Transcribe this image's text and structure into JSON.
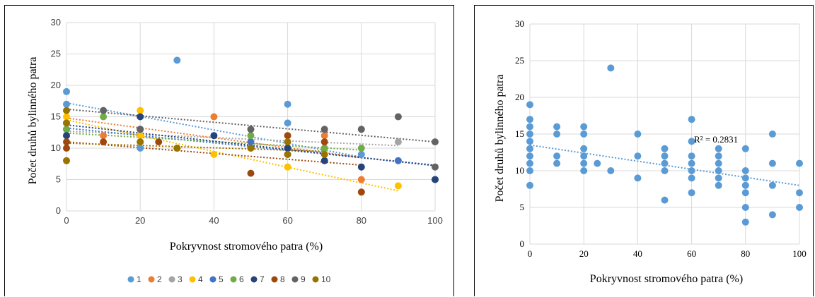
{
  "chart_data": [
    {
      "type": "scatter",
      "xlabel": "Pokryvnost stromového patra (%)",
      "ylabel": "Počet druhů bylinného patra",
      "xlim": [
        0,
        100
      ],
      "ylim": [
        0,
        30
      ],
      "xticks": [
        "0",
        "20",
        "40",
        "60",
        "80",
        "100"
      ],
      "yticks": [
        "0",
        "5",
        "10",
        "15",
        "20",
        "25",
        "30"
      ],
      "grid": true,
      "legend_position": "bottom",
      "series": [
        {
          "name": "1",
          "color": "#5B9BD5",
          "points": [
            [
              0,
              19
            ],
            [
              0,
              17
            ],
            [
              30,
              24
            ],
            [
              60,
              17
            ],
            [
              60,
              14
            ],
            [
              80,
              9
            ],
            [
              20,
              10
            ]
          ],
          "trend": [
            [
              0,
              17.2
            ],
            [
              80,
              8.6
            ]
          ]
        },
        {
          "name": "2",
          "color": "#ED7D31",
          "points": [
            [
              10,
              12
            ],
            [
              40,
              15
            ],
            [
              70,
              12
            ],
            [
              80,
              5
            ],
            [
              50,
              10
            ],
            [
              0,
              14
            ]
          ],
          "trend": [
            [
              0,
              14.8
            ],
            [
              80,
              8.5
            ]
          ]
        },
        {
          "name": "3",
          "color": "#A5A5A5",
          "points": [
            [
              0,
              12
            ],
            [
              20,
              13
            ],
            [
              50,
              11
            ],
            [
              90,
              11
            ],
            [
              70,
              10
            ]
          ],
          "trend": [
            [
              0,
              12.7
            ],
            [
              90,
              10.4
            ]
          ]
        },
        {
          "name": "4",
          "color": "#FFC000",
          "points": [
            [
              0,
              15
            ],
            [
              20,
              16
            ],
            [
              20,
              12
            ],
            [
              30,
              10
            ],
            [
              40,
              9
            ],
            [
              60,
              7
            ],
            [
              90,
              4
            ]
          ],
          "trend": [
            [
              0,
              14.5
            ],
            [
              90,
              3.2
            ]
          ]
        },
        {
          "name": "5",
          "color": "#4472C4",
          "points": [
            [
              0,
              13
            ],
            [
              20,
              13
            ],
            [
              50,
              11
            ],
            [
              60,
              10
            ],
            [
              90,
              8
            ],
            [
              100,
              5
            ]
          ],
          "trend": [
            [
              0,
              13.2
            ],
            [
              100,
              7.3
            ]
          ]
        },
        {
          "name": "6",
          "color": "#70AD47",
          "points": [
            [
              0,
              13
            ],
            [
              10,
              15
            ],
            [
              20,
              11
            ],
            [
              30,
              10
            ],
            [
              50,
              12
            ],
            [
              60,
              9
            ],
            [
              70,
              10
            ],
            [
              80,
              10
            ]
          ],
          "trend": [
            [
              0,
              12.4
            ],
            [
              80,
              9.7
            ]
          ]
        },
        {
          "name": "7",
          "color": "#264478",
          "points": [
            [
              0,
              12
            ],
            [
              20,
              15
            ],
            [
              40,
              12
            ],
            [
              60,
              10
            ],
            [
              70,
              8
            ],
            [
              80,
              7
            ],
            [
              100,
              5
            ]
          ],
          "trend": [
            [
              0,
              13.7
            ],
            [
              100,
              7.2
            ]
          ]
        },
        {
          "name": "8",
          "color": "#9E480E",
          "points": [
            [
              0,
              11
            ],
            [
              0,
              10
            ],
            [
              10,
              11
            ],
            [
              25,
              11
            ],
            [
              50,
              6
            ],
            [
              60,
              12
            ],
            [
              70,
              11
            ],
            [
              80,
              3
            ]
          ],
          "trend": [
            [
              0,
              11
            ],
            [
              80,
              7.3
            ]
          ]
        },
        {
          "name": "9",
          "color": "#636363",
          "points": [
            [
              10,
              16
            ],
            [
              20,
              13
            ],
            [
              50,
              13
            ],
            [
              70,
              13
            ],
            [
              80,
              13
            ],
            [
              90,
              15
            ],
            [
              100,
              11
            ],
            [
              100,
              7
            ]
          ],
          "trend": [
            [
              0,
              16.2
            ],
            [
              100,
              11
            ]
          ]
        },
        {
          "name": "10",
          "color": "#997300",
          "points": [
            [
              0,
              16
            ],
            [
              0,
              14
            ],
            [
              0,
              8
            ],
            [
              20,
              11
            ],
            [
              30,
              10
            ],
            [
              50,
              10
            ],
            [
              60,
              11
            ],
            [
              60,
              9
            ],
            [
              70,
              9
            ]
          ],
          "trend": [
            [
              0,
              10.8
            ],
            [
              70,
              9.5
            ]
          ]
        }
      ]
    },
    {
      "type": "scatter",
      "xlabel": "Pokryvnost stromového patra (%)",
      "ylabel": "Počet druhů bylinného patra",
      "xlim": [
        0,
        100
      ],
      "ylim": [
        0,
        30
      ],
      "xticks": [
        "0",
        "20",
        "40",
        "60",
        "80",
        "100"
      ],
      "yticks": [
        "0",
        "5",
        "10",
        "15",
        "20",
        "25",
        "30"
      ],
      "grid": true,
      "annotation": "R² = 0.2831",
      "color": "#5B9BD5",
      "trend": [
        [
          0,
          13.5
        ],
        [
          100,
          8.0
        ]
      ],
      "points": [
        [
          0,
          19
        ],
        [
          0,
          17
        ],
        [
          0,
          16
        ],
        [
          0,
          15
        ],
        [
          0,
          14
        ],
        [
          0,
          13
        ],
        [
          0,
          12
        ],
        [
          0,
          11
        ],
        [
          0,
          10
        ],
        [
          0,
          8
        ],
        [
          10,
          16
        ],
        [
          10,
          15
        ],
        [
          10,
          12
        ],
        [
          10,
          11
        ],
        [
          20,
          16
        ],
        [
          20,
          15
        ],
        [
          20,
          13
        ],
        [
          20,
          12
        ],
        [
          20,
          11
        ],
        [
          20,
          10
        ],
        [
          25,
          11
        ],
        [
          30,
          24
        ],
        [
          30,
          10
        ],
        [
          40,
          15
        ],
        [
          40,
          12
        ],
        [
          40,
          9
        ],
        [
          50,
          13
        ],
        [
          50,
          12
        ],
        [
          50,
          11
        ],
        [
          50,
          10
        ],
        [
          50,
          6
        ],
        [
          60,
          17
        ],
        [
          60,
          14
        ],
        [
          60,
          12
        ],
        [
          60,
          11
        ],
        [
          60,
          10
        ],
        [
          60,
          9
        ],
        [
          60,
          7
        ],
        [
          70,
          13
        ],
        [
          70,
          12
        ],
        [
          70,
          11
        ],
        [
          70,
          10
        ],
        [
          70,
          9
        ],
        [
          70,
          8
        ],
        [
          80,
          13
        ],
        [
          80,
          10
        ],
        [
          80,
          9
        ],
        [
          80,
          8
        ],
        [
          80,
          7
        ],
        [
          80,
          5
        ],
        [
          80,
          3
        ],
        [
          90,
          15
        ],
        [
          90,
          11
        ],
        [
          90,
          8
        ],
        [
          90,
          4
        ],
        [
          100,
          11
        ],
        [
          100,
          7
        ],
        [
          100,
          5
        ]
      ]
    }
  ]
}
